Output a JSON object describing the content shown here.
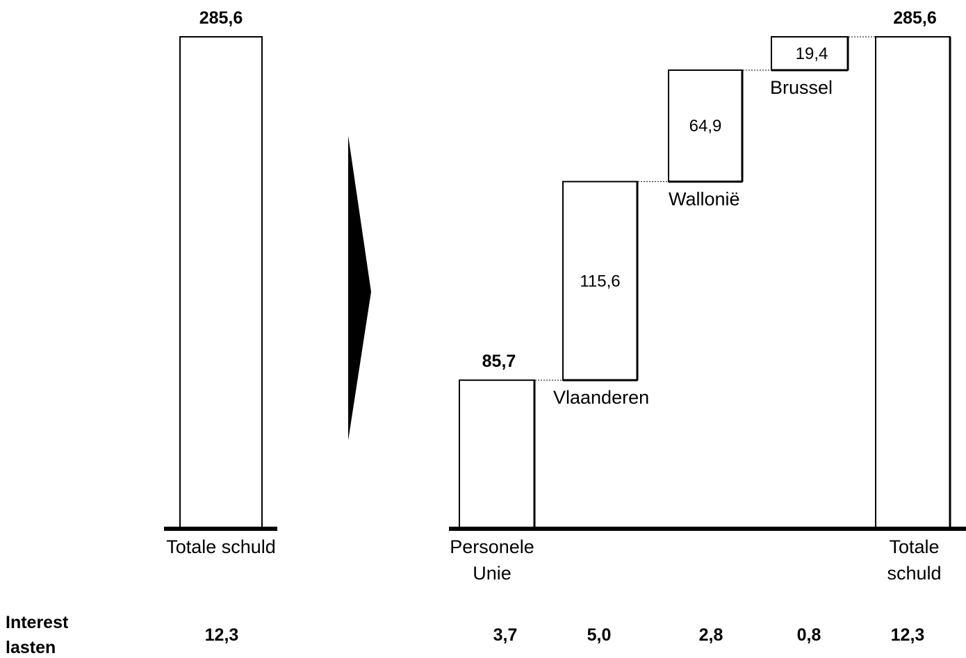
{
  "chart_data": {
    "type": "bar",
    "subtype": "waterfall",
    "title": "",
    "xlabel": "",
    "ylabel": "",
    "ylim": [
      0,
      285.6
    ],
    "grid": false,
    "legend": "none",
    "colors": {
      "bar_fill": "#ffffff",
      "bar_stroke": "#000000",
      "arrow": "#000000"
    },
    "left_total": {
      "label": "Totale schuld",
      "value": 285.6,
      "value_label": "285,6",
      "interest": "12,3"
    },
    "steps": [
      {
        "category": "Personele Unie",
        "lines": [
          "Personele",
          "Unie"
        ],
        "value": 85.7,
        "value_label": "85,7",
        "kind": "base",
        "interest": "3,7"
      },
      {
        "category": "Vlaanderen",
        "lines": [
          "Vlaanderen"
        ],
        "value": 115.6,
        "value_label": "115,6",
        "kind": "increment",
        "interest": "5,0"
      },
      {
        "category": "Wallonië",
        "lines": [
          "Wallonië"
        ],
        "value": 64.9,
        "value_label": "64,9",
        "kind": "increment",
        "interest": "2,8"
      },
      {
        "category": "Brussel",
        "lines": [
          "Brussel"
        ],
        "value": 19.4,
        "value_label": "19,4",
        "kind": "increment",
        "interest": "0,8"
      },
      {
        "category": "Totale schuld",
        "lines": [
          "Totale",
          "schuld"
        ],
        "value": 285.6,
        "value_label": "285,6",
        "kind": "total",
        "interest": "12,3"
      }
    ],
    "row_label": [
      "Interest",
      "lasten"
    ]
  }
}
